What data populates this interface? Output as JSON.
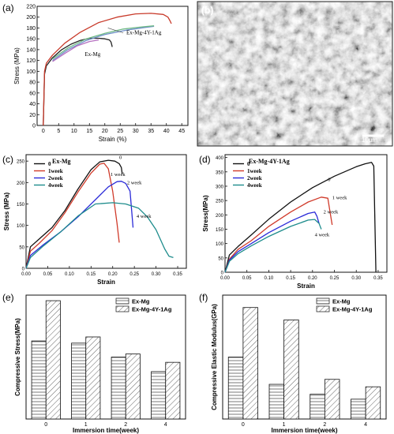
{
  "panels": {
    "a": {
      "label": "(a)"
    },
    "b": {
      "label": "(b)",
      "scale_bar": "10μm"
    },
    "c": {
      "label": "(c)",
      "subtitle": "Ex-Mg"
    },
    "d": {
      "label": "(d)",
      "subtitle": "Ex-Mg-4Y-1Ag"
    },
    "e": {
      "label": "(e)"
    },
    "f": {
      "label": "(f)"
    }
  },
  "chart_data": [
    {
      "id": "a",
      "type": "line",
      "xlabel": "Strain (%)",
      "ylabel": "Stress (MPa)",
      "xlim": [
        -2,
        47
      ],
      "ylim": [
        0,
        220
      ],
      "xticks": [
        0,
        5,
        10,
        15,
        20,
        25,
        30,
        35,
        40,
        45
      ],
      "yticks": [
        0,
        20,
        40,
        60,
        80,
        100,
        120,
        140,
        160,
        180,
        200,
        220
      ],
      "series": [
        {
          "name": "Ex-Mg",
          "color": "#222222",
          "x": [
            0,
            0.4,
            1,
            3,
            6,
            9,
            12,
            15,
            18,
            20,
            21.5,
            22,
            22.3,
            22.4
          ],
          "y": [
            0,
            95,
            110,
            125,
            140,
            150,
            157,
            161,
            161,
            160,
            158,
            154,
            148,
            145
          ]
        },
        {
          "name": "Ex-Mg-4Y-1Ag",
          "color": "#c83a2a",
          "x": [
            0,
            0.4,
            1,
            3,
            7,
            12,
            18,
            24,
            30,
            35,
            39,
            40.5,
            41.2,
            41.6
          ],
          "y": [
            0,
            100,
            115,
            130,
            152,
            172,
            190,
            200,
            206,
            207,
            205,
            200,
            193,
            188
          ]
        },
        {
          "name": "",
          "color": "#6f8fc8",
          "x": [
            3,
            8,
            14,
            20,
            27,
            33,
            36
          ],
          "y": [
            120,
            140,
            157,
            168,
            176,
            181,
            183
          ]
        },
        {
          "name": "",
          "color": "#6fba86",
          "x": [
            3,
            8,
            14,
            20,
            26,
            32,
            36
          ],
          "y": [
            123,
            143,
            160,
            170,
            178,
            182,
            184
          ]
        },
        {
          "name": "",
          "color": "#b56fc0",
          "x": [
            3,
            7,
            11,
            15,
            18
          ],
          "y": [
            118,
            133,
            147,
            155,
            158
          ]
        }
      ]
    },
    {
      "id": "c",
      "type": "line",
      "xlabel": "Strain",
      "ylabel": "Stress (MPa)",
      "xlim": [
        0,
        0.37
      ],
      "ylim": [
        0,
        265
      ],
      "xticks": [
        0.0,
        0.05,
        0.1,
        0.15,
        0.2,
        0.25,
        0.3,
        0.35
      ],
      "xticklabels": [
        "0.00",
        "0.05",
        "0.10",
        "0.15",
        "0.20",
        "0.25",
        "0.30",
        "0.35"
      ],
      "yticks": [
        0,
        50,
        100,
        150,
        200,
        250
      ],
      "series": [
        {
          "name": "0",
          "color": "#111111",
          "x": [
            0,
            0.01,
            0.03,
            0.06,
            0.09,
            0.12,
            0.15,
            0.17,
            0.19,
            0.205,
            0.215,
            0.22,
            0.222
          ],
          "y": [
            0,
            50,
            68,
            95,
            135,
            185,
            230,
            248,
            252,
            250,
            244,
            235,
            220
          ]
        },
        {
          "name": "1week",
          "color": "#d03a2a",
          "x": [
            0,
            0.01,
            0.03,
            0.06,
            0.09,
            0.12,
            0.15,
            0.17,
            0.18,
            0.19,
            0.2,
            0.21,
            0.215
          ],
          "y": [
            0,
            40,
            58,
            88,
            130,
            178,
            222,
            243,
            245,
            232,
            180,
            105,
            60
          ]
        },
        {
          "name": "2week",
          "color": "#2a2ad8",
          "x": [
            0,
            0.01,
            0.04,
            0.08,
            0.12,
            0.16,
            0.19,
            0.21,
            0.22,
            0.23,
            0.24,
            0.245,
            0.247
          ],
          "y": [
            0,
            30,
            55,
            85,
            120,
            160,
            190,
            202,
            203,
            198,
            180,
            120,
            95
          ]
        },
        {
          "name": "4week",
          "color": "#1e8c8c",
          "x": [
            0,
            0.01,
            0.04,
            0.08,
            0.12,
            0.16,
            0.2,
            0.23,
            0.26,
            0.28,
            0.3,
            0.32,
            0.33,
            0.34
          ],
          "y": [
            0,
            25,
            52,
            85,
            122,
            150,
            153,
            150,
            140,
            120,
            90,
            45,
            28,
            25
          ]
        }
      ],
      "annotations": [
        {
          "text": "0",
          "x": 0.215,
          "y": 255
        },
        {
          "text": "1 week",
          "x": 0.195,
          "y": 215
        },
        {
          "text": "2 week",
          "x": 0.233,
          "y": 196
        },
        {
          "text": "4 week",
          "x": 0.255,
          "y": 118
        }
      ]
    },
    {
      "id": "d",
      "type": "line",
      "xlabel": "Strain",
      "ylabel": "Stress(MPa)",
      "xlim": [
        0,
        0.37
      ],
      "ylim": [
        0,
        410
      ],
      "xticks": [
        0.0,
        0.05,
        0.1,
        0.15,
        0.2,
        0.25,
        0.3,
        0.35
      ],
      "xticklabels": [
        "0.00",
        "0.05",
        "0.10",
        "0.15",
        "0.20",
        "0.25",
        "0.30",
        "0.35"
      ],
      "yticks": [
        0,
        50,
        100,
        150,
        200,
        250,
        300,
        350,
        400
      ],
      "series": [
        {
          "name": "0",
          "color": "#111111",
          "x": [
            0,
            0.01,
            0.03,
            0.06,
            0.1,
            0.15,
            0.2,
            0.25,
            0.3,
            0.32,
            0.335,
            0.34,
            0.343,
            0.345
          ],
          "y": [
            0,
            60,
            90,
            130,
            185,
            245,
            295,
            335,
            368,
            378,
            383,
            370,
            150,
            0
          ]
        },
        {
          "name": "1week",
          "color": "#d03a2a",
          "x": [
            0,
            0.01,
            0.03,
            0.06,
            0.1,
            0.15,
            0.19,
            0.22,
            0.235,
            0.24,
            0.245
          ],
          "y": [
            0,
            45,
            80,
            110,
            160,
            210,
            245,
            262,
            258,
            210,
            165
          ]
        },
        {
          "name": "2week",
          "color": "#2a2ad8",
          "x": [
            0,
            0.01,
            0.03,
            0.06,
            0.1,
            0.15,
            0.19,
            0.205,
            0.21,
            0.215
          ],
          "y": [
            0,
            42,
            72,
            100,
            138,
            178,
            205,
            210,
            195,
            170
          ]
        },
        {
          "name": "4week",
          "color": "#1e8c8c",
          "x": [
            0,
            0.01,
            0.03,
            0.06,
            0.1,
            0.15,
            0.19,
            0.205,
            0.215,
            0.22
          ],
          "y": [
            0,
            38,
            65,
            92,
            125,
            160,
            182,
            184,
            170,
            150
          ]
        }
      ],
      "annotations": [
        {
          "text": "0",
          "x": 0.235,
          "y": 318
        },
        {
          "text": "1 week",
          "x": 0.245,
          "y": 255
        },
        {
          "text": "2 week",
          "x": 0.225,
          "y": 205
        },
        {
          "text": "4 week",
          "x": 0.205,
          "y": 125
        }
      ]
    },
    {
      "id": "e",
      "type": "bar",
      "xlabel": "Immersion time(week)",
      "ylabel": "Compressive Stress(MPa)",
      "ylim": [
        0,
        400
      ],
      "categories": [
        "0",
        "1",
        "2",
        "4"
      ],
      "legend_position": "top-right",
      "series": [
        {
          "name": "Ex-Mg",
          "pattern": "horizontal",
          "values": [
            252,
            245,
            200,
            153
          ]
        },
        {
          "name": "Ex-Mg-4Y-1Ag",
          "pattern": "diagonal",
          "values": [
            382,
            265,
            210,
            183
          ]
        }
      ]
    },
    {
      "id": "f",
      "type": "bar",
      "xlabel": "Immersion time(week)",
      "ylabel": "Compressive Elastic Modulus(GPa)",
      "ylim": [
        0,
        50
      ],
      "categories": [
        "0",
        "1",
        "2",
        "4"
      ],
      "legend_position": "top-right",
      "series": [
        {
          "name": "Ex-Mg",
          "pattern": "horizontal",
          "values": [
            25,
            14,
            10,
            8
          ]
        },
        {
          "name": "Ex-Mg-4Y-1Ag",
          "pattern": "diagonal",
          "values": [
            45,
            40,
            16,
            13
          ]
        }
      ]
    }
  ]
}
